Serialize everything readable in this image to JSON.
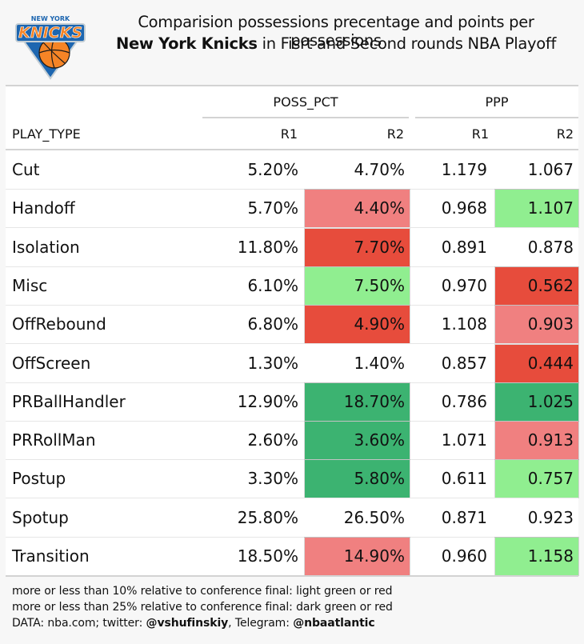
{
  "header": {
    "title_line1": "Comparision possessions precentage and points per possessions",
    "title_team": "New York Knicks",
    "title_rest": " in Fisrt and Second rounds NBA Playoff",
    "logo_text_top": "NEW YORK",
    "logo_text_main": "KNICKS"
  },
  "table": {
    "group_poss": "POSS_PCT",
    "group_ppp": "PPP",
    "col_playtype": "PLAY_TYPE",
    "col_r1_poss": "R1",
    "col_r2_poss": "R2",
    "col_r1_ppp": "R1",
    "col_r2_ppp": "R2",
    "rows": [
      {
        "play": "Cut",
        "poss_r1": "5.20%",
        "poss_r2": "4.70%",
        "poss_r2_color": "",
        "ppp_r1": "1.179",
        "ppp_r2": "1.067",
        "ppp_r2_color": ""
      },
      {
        "play": "Handoff",
        "poss_r1": "5.70%",
        "poss_r2": "4.40%",
        "poss_r2_color": "#f08080",
        "ppp_r1": "0.968",
        "ppp_r2": "1.107",
        "ppp_r2_color": "#90ee90"
      },
      {
        "play": "Isolation",
        "poss_r1": "11.80%",
        "poss_r2": "7.70%",
        "poss_r2_color": "#e74c3c",
        "ppp_r1": "0.891",
        "ppp_r2": "0.878",
        "ppp_r2_color": ""
      },
      {
        "play": "Misc",
        "poss_r1": "6.10%",
        "poss_r2": "7.50%",
        "poss_r2_color": "#90ee90",
        "ppp_r1": "0.970",
        "ppp_r2": "0.562",
        "ppp_r2_color": "#e74c3c"
      },
      {
        "play": "OffRebound",
        "poss_r1": "6.80%",
        "poss_r2": "4.90%",
        "poss_r2_color": "#e74c3c",
        "ppp_r1": "1.108",
        "ppp_r2": "0.903",
        "ppp_r2_color": "#f08080"
      },
      {
        "play": "OffScreen",
        "poss_r1": "1.30%",
        "poss_r2": "1.40%",
        "poss_r2_color": "",
        "ppp_r1": "0.857",
        "ppp_r2": "0.444",
        "ppp_r2_color": "#e74c3c"
      },
      {
        "play": "PRBallHandler",
        "poss_r1": "12.90%",
        "poss_r2": "18.70%",
        "poss_r2_color": "#3cb371",
        "ppp_r1": "0.786",
        "ppp_r2": "1.025",
        "ppp_r2_color": "#3cb371"
      },
      {
        "play": "PRRollMan",
        "poss_r1": "2.60%",
        "poss_r2": "3.60%",
        "poss_r2_color": "#3cb371",
        "ppp_r1": "1.071",
        "ppp_r2": "0.913",
        "ppp_r2_color": "#f08080"
      },
      {
        "play": "Postup",
        "poss_r1": "3.30%",
        "poss_r2": "5.80%",
        "poss_r2_color": "#3cb371",
        "ppp_r1": "0.611",
        "ppp_r2": "0.757",
        "ppp_r2_color": "#90ee90"
      },
      {
        "play": "Spotup",
        "poss_r1": "25.80%",
        "poss_r2": "26.50%",
        "poss_r2_color": "",
        "ppp_r1": "0.871",
        "ppp_r2": "0.923",
        "ppp_r2_color": ""
      },
      {
        "play": "Transition",
        "poss_r1": "18.50%",
        "poss_r2": "14.90%",
        "poss_r2_color": "#f08080",
        "ppp_r1": "0.960",
        "ppp_r2": "1.158",
        "ppp_r2_color": "#90ee90"
      }
    ]
  },
  "footer": {
    "line1": "more or less than 10% relative to conference final: light green or red",
    "line2": "more or less than 25% relative to conference final: dark green or red",
    "data_prefix": "DATA: nba.com; twitter: ",
    "twitter": "@vshufinskiy",
    "telegram_prefix": ", Telegram: ",
    "telegram": "@nbaatlantic"
  },
  "colors": {
    "light_green": "#90ee90",
    "dark_green": "#3cb371",
    "light_red": "#f08080",
    "dark_red": "#e74c3c",
    "knicks_blue": "#1d66b0",
    "knicks_orange": "#f58426"
  }
}
